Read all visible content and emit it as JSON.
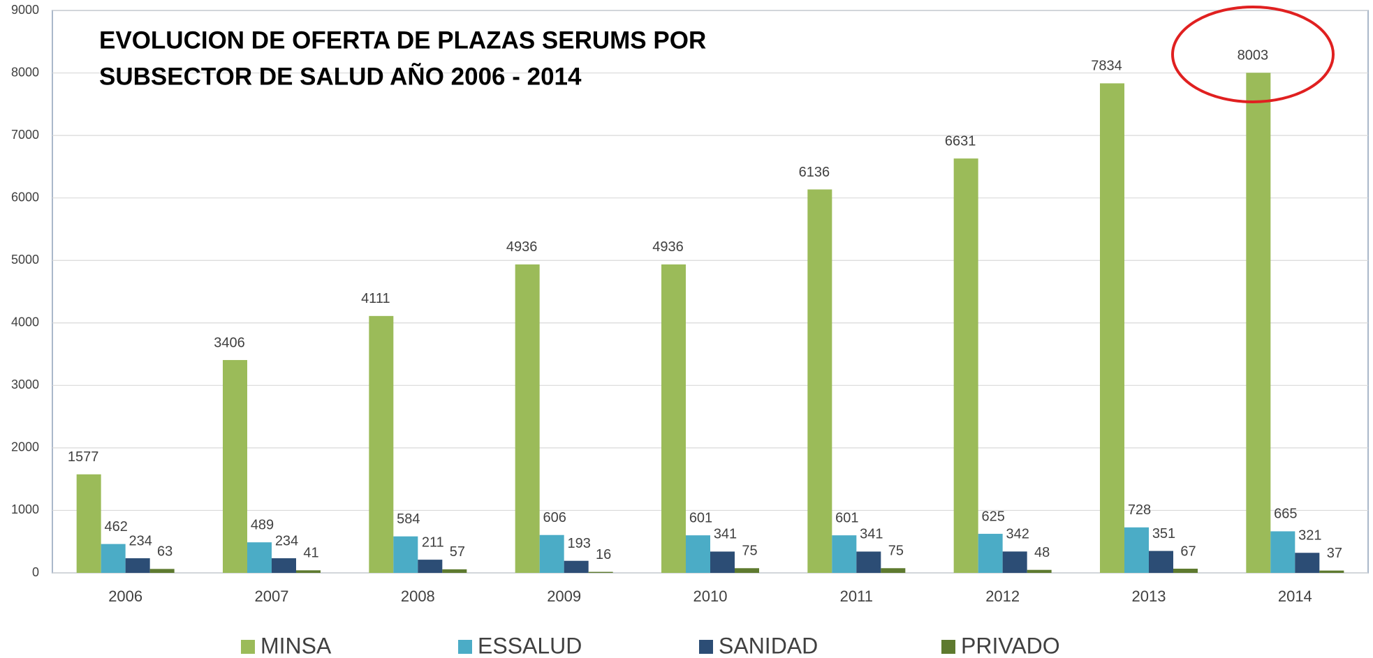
{
  "chart_data": {
    "type": "bar",
    "title": [
      "EVOLUCION DE OFERTA DE PLAZAS SERUMS POR",
      "SUBSECTOR DE SALUD AÑO 2006 - 2014"
    ],
    "categories": [
      "2006",
      "2007",
      "2008",
      "2009",
      "2010",
      "2011",
      "2012",
      "2013",
      "2014"
    ],
    "series": [
      {
        "name": "MINSA",
        "color": "#9bbb59",
        "values": [
          1577,
          3406,
          4111,
          4936,
          4936,
          6136,
          6631,
          7834,
          8003
        ]
      },
      {
        "name": "ESSALUD",
        "color": "#4bacc6",
        "values": [
          462,
          489,
          584,
          606,
          601,
          601,
          625,
          728,
          665
        ]
      },
      {
        "name": "SANIDAD",
        "color": "#2c4d75",
        "values": [
          234,
          234,
          211,
          193,
          341,
          341,
          342,
          351,
          321
        ]
      },
      {
        "name": "PRIVADO",
        "color": "#5e7a2f",
        "values": [
          63,
          41,
          57,
          16,
          75,
          75,
          48,
          67,
          37
        ]
      }
    ],
    "ylim": [
      0,
      9000
    ],
    "yticks": [
      0,
      1000,
      2000,
      3000,
      4000,
      5000,
      6000,
      7000,
      8000,
      9000
    ],
    "grid": true,
    "legend": "bottom"
  }
}
